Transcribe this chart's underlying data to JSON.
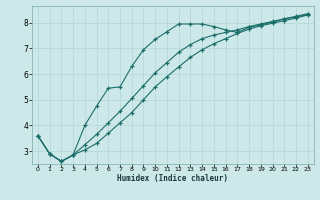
{
  "xlabel": "Humidex (Indice chaleur)",
  "ylabel": "",
  "bg_color": "#cde8e8",
  "grid_color": "#b8d8d8",
  "line_color": "#1a6e6a",
  "xlim": [
    -0.5,
    23.5
  ],
  "ylim": [
    2.5,
    8.65
  ],
  "x_ticks": [
    0,
    1,
    2,
    3,
    4,
    5,
    6,
    7,
    8,
    9,
    10,
    11,
    12,
    13,
    14,
    15,
    16,
    17,
    18,
    19,
    20,
    21,
    22,
    23
  ],
  "y_ticks": [
    3,
    4,
    5,
    6,
    7,
    8
  ],
  "line1_x": [
    0,
    1,
    2,
    3,
    4,
    5,
    6,
    7,
    8,
    9,
    10,
    11,
    12,
    13,
    14,
    15,
    16,
    17,
    18,
    19,
    20,
    21,
    22,
    23
  ],
  "line1_y": [
    3.6,
    2.9,
    2.6,
    2.85,
    4.0,
    4.75,
    5.45,
    5.5,
    6.3,
    6.95,
    7.35,
    7.65,
    7.95,
    7.95,
    7.95,
    7.85,
    7.72,
    7.62,
    7.82,
    7.92,
    8.02,
    8.15,
    8.22,
    8.32
  ],
  "line2_x": [
    0,
    1,
    2,
    3,
    4,
    5,
    6,
    7,
    8,
    9,
    10,
    11,
    12,
    13,
    14,
    15,
    16,
    17,
    18,
    19,
    20,
    21,
    22,
    23
  ],
  "line2_y": [
    3.6,
    2.9,
    2.6,
    2.85,
    3.25,
    3.65,
    4.1,
    4.55,
    5.05,
    5.55,
    6.05,
    6.45,
    6.85,
    7.15,
    7.38,
    7.52,
    7.62,
    7.72,
    7.85,
    7.95,
    8.05,
    8.15,
    8.25,
    8.35
  ],
  "line3_x": [
    0,
    1,
    2,
    3,
    4,
    5,
    6,
    7,
    8,
    9,
    10,
    11,
    12,
    13,
    14,
    15,
    16,
    17,
    18,
    19,
    20,
    21,
    22,
    23
  ],
  "line3_y": [
    3.6,
    2.9,
    2.6,
    2.85,
    3.05,
    3.3,
    3.7,
    4.1,
    4.5,
    5.0,
    5.5,
    5.9,
    6.28,
    6.65,
    6.95,
    7.18,
    7.38,
    7.58,
    7.75,
    7.88,
    7.98,
    8.08,
    8.18,
    8.3
  ]
}
